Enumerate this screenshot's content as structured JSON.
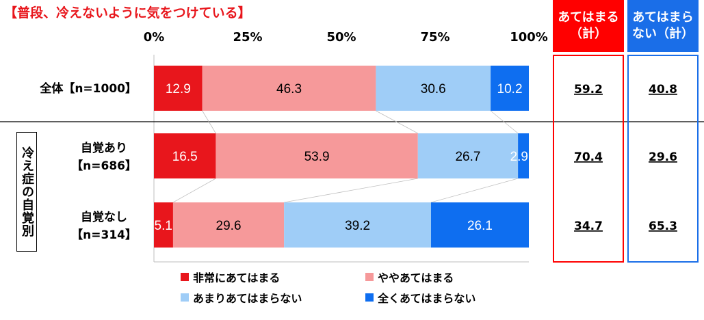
{
  "title": "【普段、冷えないように気をつけている】",
  "group_label": "冷え症の自覚別",
  "summary_headers": {
    "agree": [
      "あてはまる",
      "（計）"
    ],
    "disagree": [
      "あてはまら",
      "ない（計）"
    ]
  },
  "colors": {
    "very": "#e8161c",
    "somewhat": "#f6999a",
    "not_much": "#9fcdf7",
    "not_at_all": "#0e6ef0",
    "agree_head": "#ff0000",
    "disagree_head": "#1a6ee8"
  },
  "chart_data": {
    "type": "bar",
    "orientation": "horizontal",
    "stacked": true,
    "xlim": [
      0,
      100
    ],
    "xticks": [
      "0%",
      "25%",
      "50%",
      "75%",
      "100%"
    ],
    "categories": [
      [
        "全体【n=1000】"
      ],
      [
        "自覚あり",
        "【n=686】"
      ],
      [
        "自覚なし",
        "【n=314】"
      ]
    ],
    "series": [
      {
        "name": "非常にあてはまる",
        "values": [
          12.9,
          16.5,
          5.1
        ]
      },
      {
        "name": "ややあてはまる",
        "values": [
          46.3,
          53.9,
          29.6
        ]
      },
      {
        "name": "あまりあてはまらない",
        "values": [
          30.6,
          26.7,
          39.2
        ]
      },
      {
        "name": "全くあてはまらない",
        "values": [
          10.2,
          2.9,
          26.1
        ]
      }
    ],
    "summary": {
      "agree": [
        "59.2",
        "70.4",
        "34.7"
      ],
      "disagree": [
        "40.8",
        "29.6",
        "65.3"
      ]
    },
    "legend_position": "bottom"
  }
}
